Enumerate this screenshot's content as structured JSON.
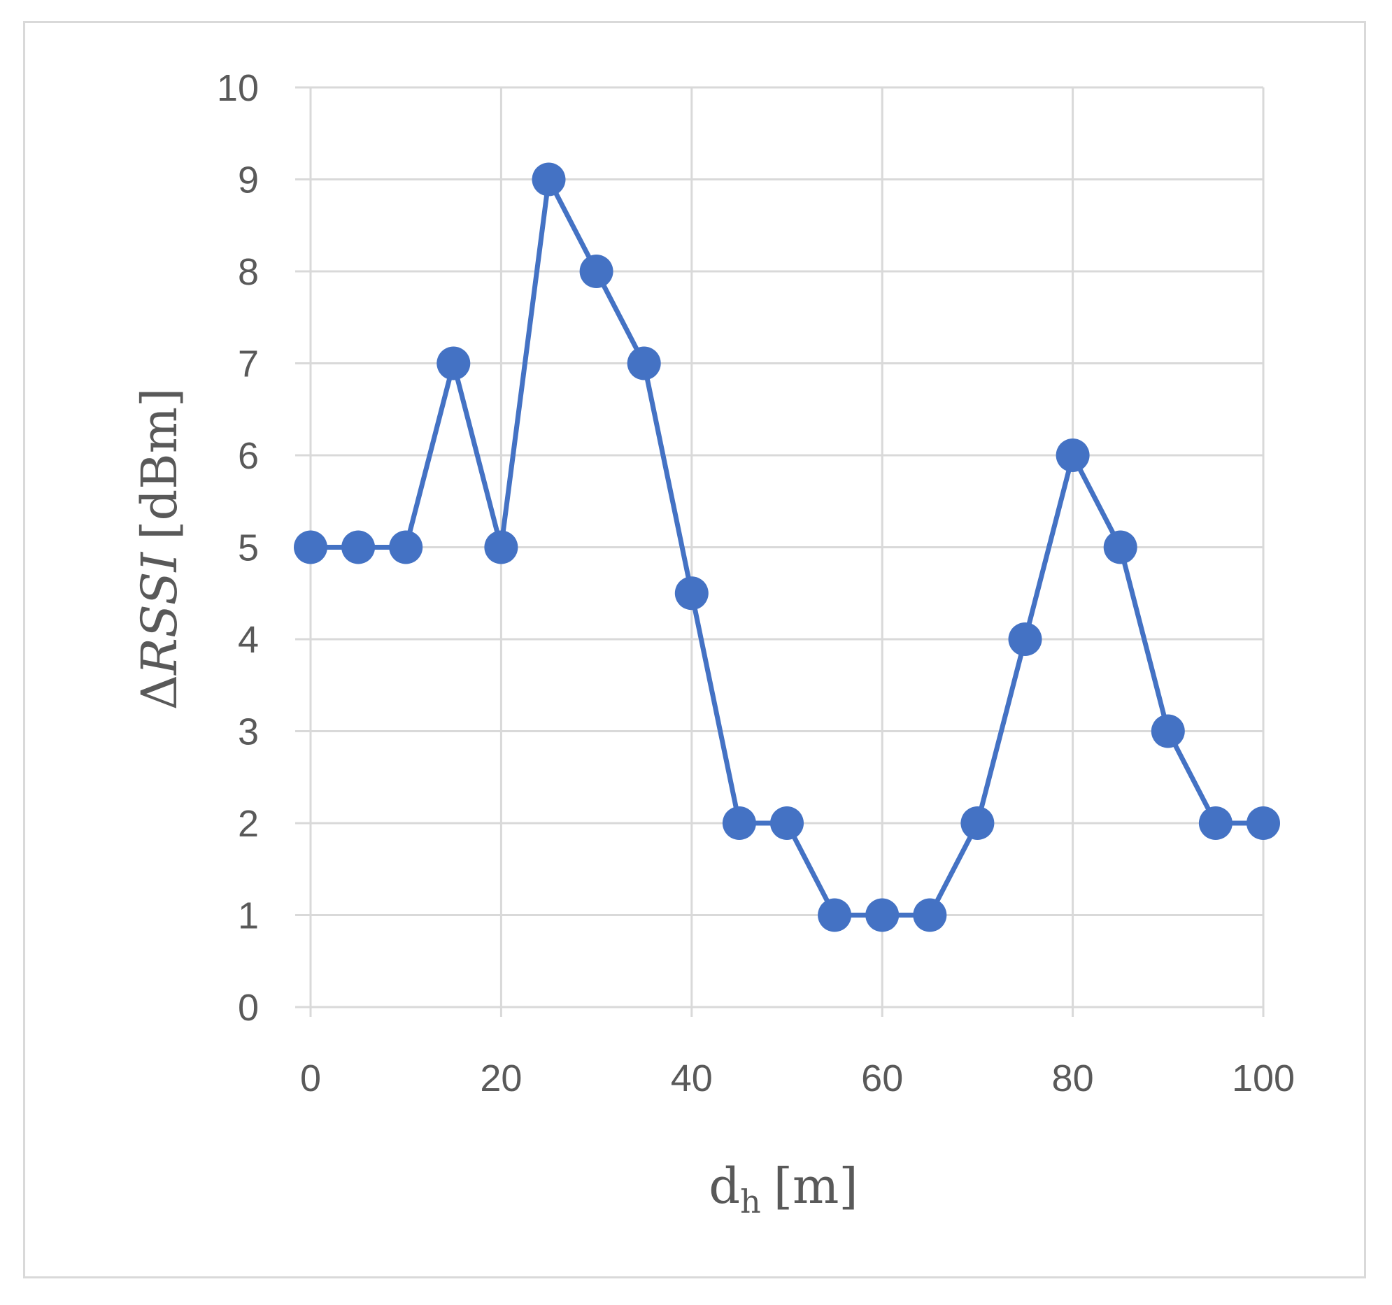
{
  "chart_data": {
    "type": "line",
    "xlabel": "d",
    "xlabel_subscript": "h",
    "xlabel_unit": "[m]",
    "ylabel_delta": "Δ",
    "ylabel_var": "RSSI",
    "ylabel_unit": "[dBm]",
    "xlim": [
      0,
      100
    ],
    "ylim": [
      0,
      10
    ],
    "xticks": [
      0,
      20,
      40,
      60,
      80,
      100
    ],
    "yticks": [
      0,
      1,
      2,
      3,
      4,
      5,
      6,
      7,
      8,
      9,
      10
    ],
    "grid": true,
    "colors": {
      "series": "#4472c4",
      "grid": "#d9d9d9",
      "text": "#595959"
    },
    "series": [
      {
        "x": [
          0,
          5,
          10,
          15,
          20,
          25,
          30,
          35,
          40,
          45,
          50,
          55,
          60,
          65,
          70,
          75,
          80,
          85,
          90,
          95,
          100
        ],
        "y": [
          5,
          5,
          5,
          7,
          5,
          9,
          8,
          7,
          4.5,
          2,
          2,
          1,
          1,
          1,
          2,
          4,
          6,
          5,
          3,
          2,
          2
        ]
      }
    ]
  }
}
